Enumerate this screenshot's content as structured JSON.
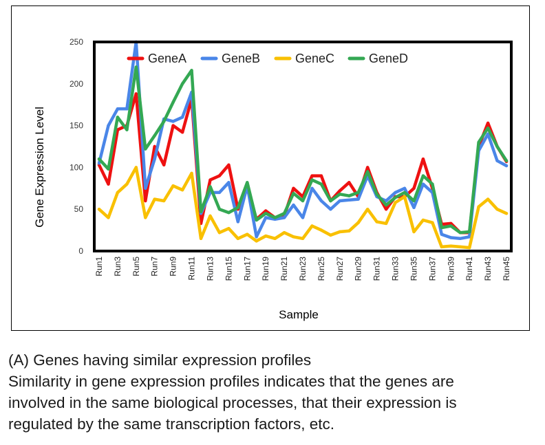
{
  "chart_data": {
    "type": "line",
    "xlabel": "Sample",
    "ylabel": "Gene Expression Level",
    "ylim": [
      0,
      250
    ],
    "yticks": [
      0,
      50,
      100,
      150,
      200,
      250
    ],
    "grid": false,
    "legend_position": "top",
    "categories": [
      "Run1",
      "Run2",
      "Run3",
      "Run4",
      "Run5",
      "Run6",
      "Run7",
      "Run8",
      "Run9",
      "Run10",
      "Run11",
      "Run12",
      "Run13",
      "Run14",
      "Run15",
      "Run16",
      "Run17",
      "Run18",
      "Run19",
      "Run20",
      "Run21",
      "Run22",
      "Run23",
      "Run24",
      "Run25",
      "Run26",
      "Run27",
      "Run28",
      "Run29",
      "Run30",
      "Run31",
      "Run32",
      "Run33",
      "Run34",
      "Run35",
      "Run36",
      "Run37",
      "Run38",
      "Run39",
      "Run40",
      "Run41",
      "Run42",
      "Run43",
      "Run44",
      "Run45"
    ],
    "tick_labels": [
      "Run1",
      "Run3",
      "Run5",
      "Run7",
      "Run9",
      "Run11",
      "Run13",
      "Run15",
      "Run17",
      "Run19",
      "Run21",
      "Run23",
      "Run25",
      "Run27",
      "Run29",
      "Run31",
      "Run33",
      "Run35",
      "Run37",
      "Run39",
      "Run41",
      "Run43",
      "Run45"
    ],
    "series": [
      {
        "name": "GeneA",
        "color": "#ee1111",
        "values": [
          103,
          80,
          145,
          150,
          188,
          60,
          125,
          103,
          150,
          142,
          182,
          33,
          85,
          90,
          103,
          50,
          75,
          38,
          48,
          40,
          42,
          75,
          65,
          90,
          90,
          60,
          72,
          82,
          65,
          100,
          70,
          50,
          65,
          65,
          75,
          110,
          75,
          32,
          33,
          22,
          22,
          125,
          153,
          125,
          107
        ]
      },
      {
        "name": "GeneB",
        "color": "#4a86e8",
        "values": [
          105,
          150,
          170,
          170,
          250,
          75,
          110,
          158,
          155,
          160,
          190,
          45,
          70,
          70,
          82,
          35,
          78,
          17,
          40,
          38,
          40,
          55,
          40,
          75,
          60,
          50,
          60,
          61,
          62,
          90,
          65,
          60,
          70,
          75,
          52,
          80,
          70,
          20,
          16,
          15,
          17,
          120,
          140,
          108,
          102
        ]
      },
      {
        "name": "GeneC",
        "color": "#f9c000",
        "values": [
          50,
          40,
          70,
          80,
          100,
          40,
          62,
          60,
          78,
          73,
          93,
          15,
          42,
          22,
          27,
          15,
          20,
          12,
          18,
          15,
          22,
          17,
          15,
          30,
          25,
          19,
          23,
          24,
          34,
          50,
          35,
          33,
          58,
          65,
          23,
          37,
          34,
          5,
          6,
          5,
          4,
          53,
          62,
          50,
          45
        ]
      },
      {
        "name": "GeneD",
        "color": "#34a853",
        "values": [
          110,
          98,
          160,
          145,
          220,
          122,
          138,
          155,
          178,
          200,
          216,
          47,
          77,
          50,
          46,
          52,
          82,
          37,
          45,
          40,
          45,
          69,
          60,
          85,
          80,
          60,
          68,
          66,
          70,
          95,
          68,
          55,
          64,
          70,
          60,
          90,
          80,
          28,
          30,
          22,
          23,
          130,
          147,
          125,
          108
        ]
      }
    ]
  },
  "caption": {
    "heading": "(A) Genes having similar expression profiles",
    "line1": "Similarity in gene expression profiles indicates that the genes are",
    "line2": "involved in the same biological processes, that their expression is",
    "line3": "regulated by the same transcription factors, etc."
  }
}
